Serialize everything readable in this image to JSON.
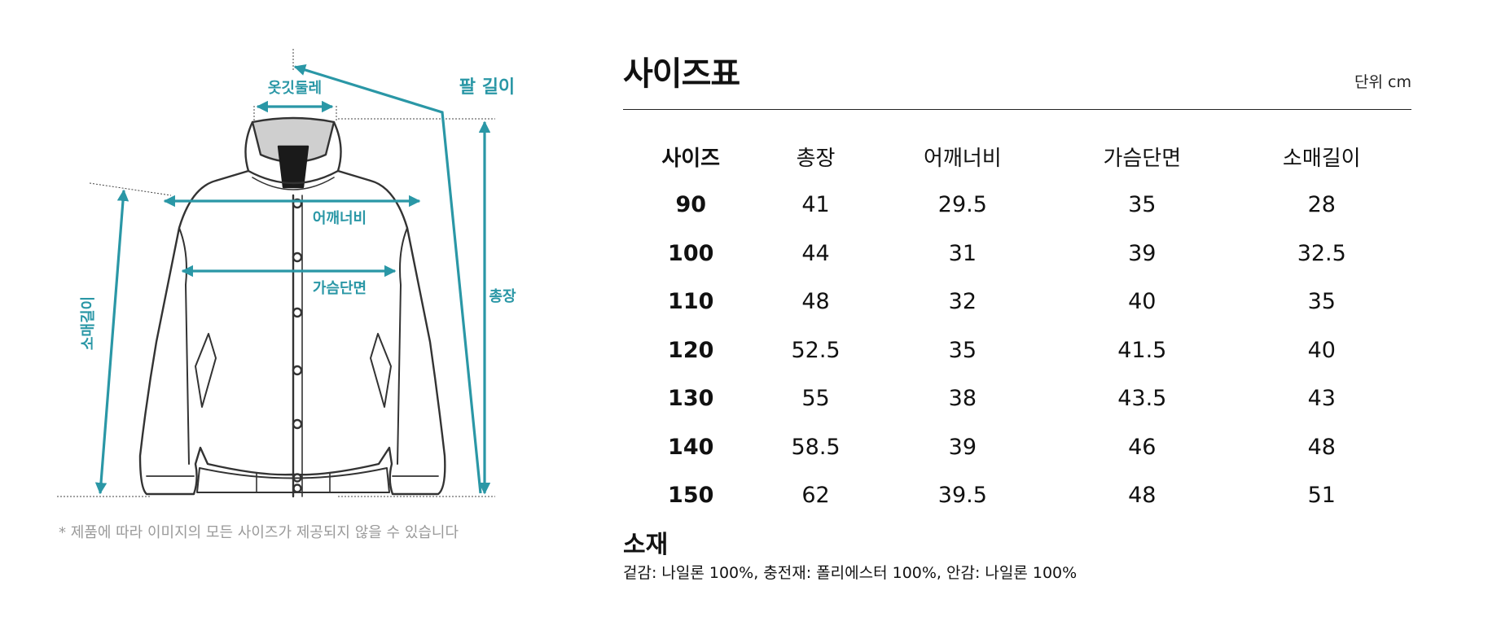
{
  "diagram": {
    "labels": {
      "collar": "옷깃둘레",
      "arm_length": "팔 길이",
      "shoulder": "어깨너비",
      "chest": "가슴단면",
      "total_length": "총장",
      "sleeve": "소매길이"
    },
    "accent_color": "#2a97a6"
  },
  "note": "* 제품에 따라 이미지의 모든 사이즈가 제공되지 않을 수 있습니다",
  "size_chart": {
    "title": "사이즈표",
    "unit": "단위 cm",
    "headers": [
      "사이즈",
      "총장",
      "어깨너비",
      "가슴단면",
      "소매길이"
    ],
    "rows": [
      [
        "90",
        "41",
        "29.5",
        "35",
        "28"
      ],
      [
        "100",
        "44",
        "31",
        "39",
        "32.5"
      ],
      [
        "110",
        "48",
        "32",
        "40",
        "35"
      ],
      [
        "120",
        "52.5",
        "35",
        "41.5",
        "40"
      ],
      [
        "130",
        "55",
        "38",
        "43.5",
        "43"
      ],
      [
        "140",
        "58.5",
        "39",
        "46",
        "48"
      ],
      [
        "150",
        "62",
        "39.5",
        "48",
        "51"
      ]
    ]
  },
  "material": {
    "title": "소재",
    "text": "겉감: 나일론 100%, 충전재: 폴리에스터 100%, 안감: 나일론 100%"
  }
}
